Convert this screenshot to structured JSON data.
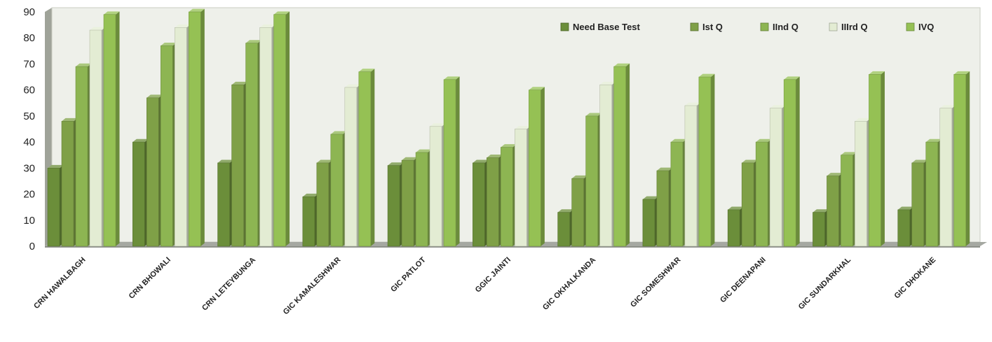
{
  "chart_data": {
    "type": "bar",
    "three_d": true,
    "title": "",
    "xlabel": "",
    "ylabel": "",
    "ylim": [
      0,
      90
    ],
    "yticks": [
      0,
      10,
      20,
      30,
      40,
      50,
      60,
      70,
      80,
      90
    ],
    "grid": false,
    "legend_position": "top-right",
    "categories": [
      "CRN HAWALBAGH",
      "CRN BHOWALI",
      "CRN LETEYBUNGA",
      "GIC KAMALESHWAR",
      "GIC PATLOT",
      "GGIC JAINTI",
      "GIC OKHALKANDA",
      "GIC SOMESHWAR",
      "GIC DEENAPANI",
      "GIC SUNDARKHAL",
      "GIC DHOKANE"
    ],
    "series": [
      {
        "name": "Need Base Test",
        "color": "#6b8e3a",
        "values": [
          30,
          40,
          32,
          19,
          31,
          32,
          13,
          18,
          14,
          13,
          14
        ]
      },
      {
        "name": "Ist Q",
        "color": "#7fa047",
        "values": [
          48,
          57,
          62,
          32,
          33,
          34,
          26,
          29,
          32,
          27,
          32
        ]
      },
      {
        "name": "IInd Q",
        "color": "#8db552",
        "values": [
          69,
          77,
          78,
          43,
          36,
          38,
          50,
          40,
          40,
          35,
          40
        ]
      },
      {
        "name": "IIIrd Q",
        "color": "#e3ecd3",
        "values": [
          83,
          84,
          84,
          61,
          46,
          45,
          62,
          54,
          53,
          48,
          53
        ]
      },
      {
        "name": "IVQ",
        "color": "#95c154",
        "values": [
          89,
          90,
          89,
          67,
          64,
          60,
          69,
          65,
          64,
          66,
          66
        ]
      }
    ]
  }
}
